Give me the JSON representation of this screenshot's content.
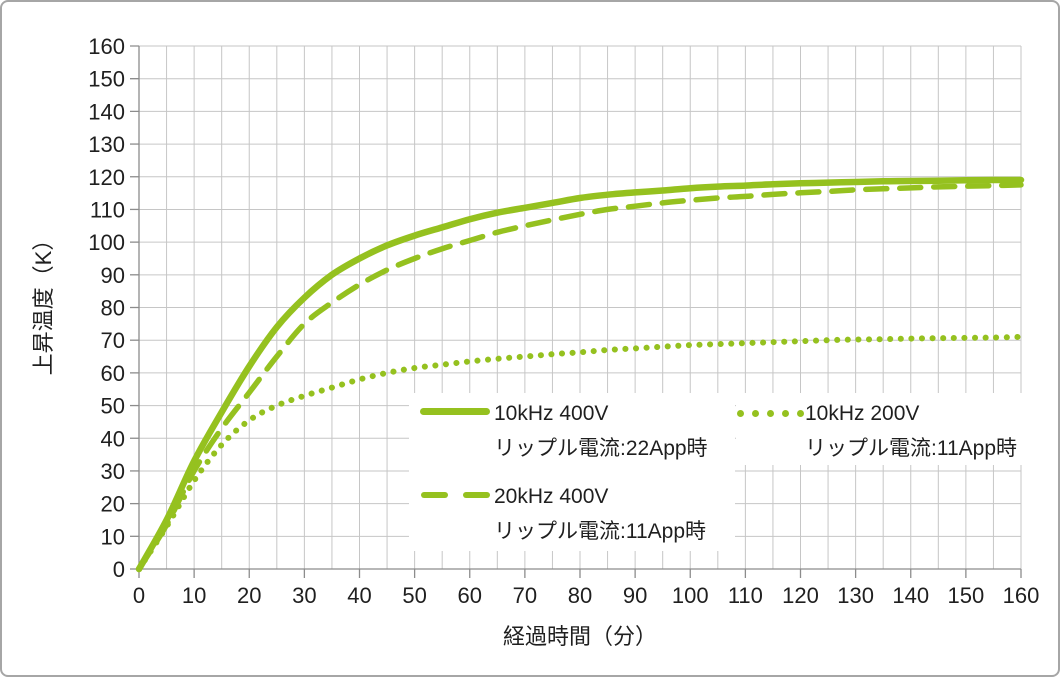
{
  "chart_data": {
    "type": "line",
    "title": "",
    "xlabel": "経過時間（分）",
    "ylabel": "上昇温度（K）",
    "xlim": [
      0,
      160
    ],
    "ylim": [
      0,
      160
    ],
    "xticks": [
      0,
      10,
      20,
      30,
      40,
      50,
      60,
      70,
      80,
      90,
      100,
      110,
      120,
      130,
      140,
      150,
      160
    ],
    "yticks": [
      0,
      10,
      20,
      30,
      40,
      50,
      60,
      70,
      80,
      90,
      100,
      110,
      120,
      130,
      140,
      150,
      160
    ],
    "x_minor_grid_step": 5,
    "grid": true,
    "legend_position": "inside-bottom, white background, two-line labels",
    "x": [
      0,
      5,
      10,
      15,
      20,
      25,
      30,
      35,
      40,
      45,
      50,
      55,
      60,
      65,
      70,
      75,
      80,
      85,
      90,
      95,
      100,
      105,
      110,
      115,
      120,
      125,
      130,
      135,
      140,
      145,
      150,
      155,
      160
    ],
    "series": [
      {
        "name": "10kHz 400V リップル電流:22App時",
        "line1": "10kHz 400V",
        "line2": "リップル電流:22App時",
        "style": "solid",
        "color": "#95C11F",
        "values": [
          0,
          15,
          33,
          48,
          62,
          74,
          83,
          90,
          95,
          99,
          102,
          104.5,
          107,
          109,
          110.5,
          112,
          113.5,
          114.5,
          115.2,
          115.8,
          116.5,
          117,
          117.3,
          117.7,
          118,
          118.2,
          118.4,
          118.6,
          118.7,
          118.8,
          118.9,
          119,
          119
        ]
      },
      {
        "name": "20kHz 400V リップル電流:11App時",
        "line1": "20kHz 400V",
        "line2": "リップル電流:11App時",
        "style": "dashed",
        "color": "#95C11F",
        "values": [
          0,
          13.5,
          30,
          43,
          54,
          65,
          75,
          81.5,
          87,
          91.5,
          95,
          98,
          100.5,
          103,
          105,
          106.8,
          108.5,
          110,
          111,
          112,
          112.8,
          113.5,
          114,
          114.6,
          115.1,
          115.5,
          116,
          116.3,
          116.6,
          116.9,
          117.1,
          117.3,
          117.5
        ]
      },
      {
        "name": "10kHz 200V リップル電流:11App時",
        "line1": "10kHz 200V",
        "line2": "リップル電流:11App時",
        "style": "dotted",
        "color": "#95C11F",
        "values": [
          0,
          13,
          27,
          38,
          45.5,
          50,
          53,
          55.5,
          58,
          60,
          61.5,
          62.5,
          63.5,
          64.3,
          65,
          65.7,
          66.3,
          67,
          67.5,
          68,
          68.5,
          68.8,
          69.1,
          69.4,
          69.7,
          70,
          70.2,
          70.3,
          70.5,
          70.6,
          70.7,
          70.8,
          71
        ]
      }
    ]
  },
  "colors": {
    "line_green": "#95C11F",
    "grid": "#c6c6c6",
    "axis": "#8c8c8c",
    "tick": "#8c8c8c",
    "text": "#1f1f1f",
    "background": "#ffffff",
    "frame_border": "#a6a6a6"
  }
}
